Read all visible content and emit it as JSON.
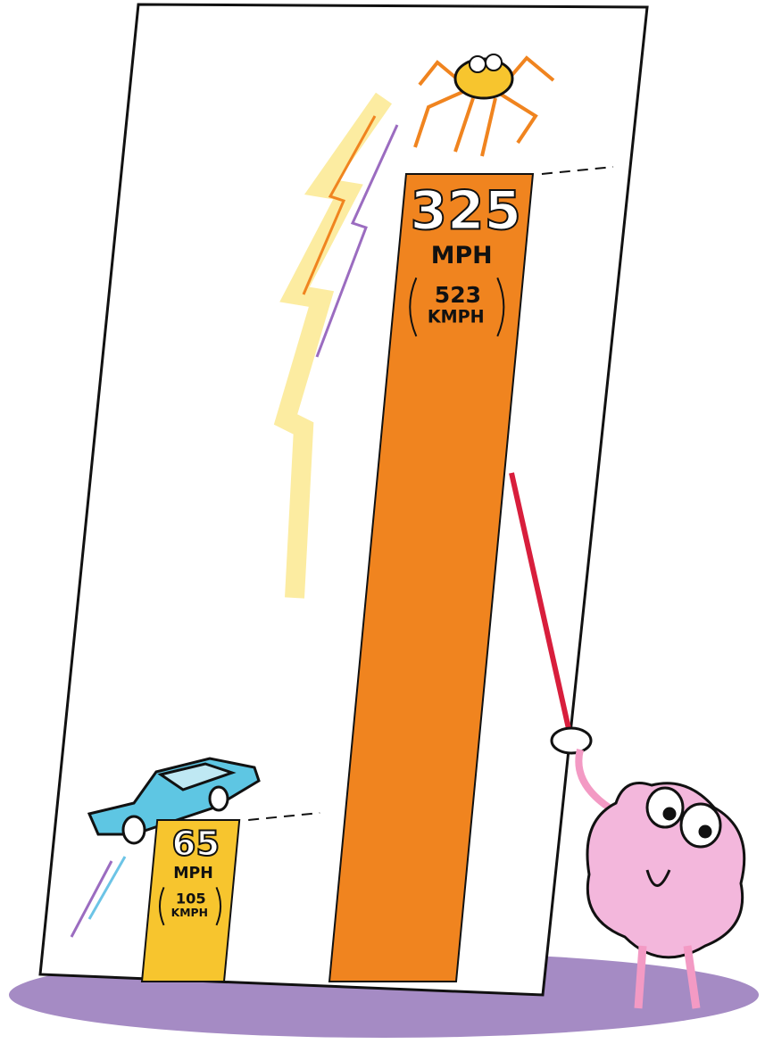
{
  "chart_data": {
    "type": "bar",
    "values": [
      65,
      325
    ],
    "unit": "MPH",
    "secondary_values": [
      105,
      523
    ],
    "secondary_unit": "KMPH",
    "colors": [
      "#f7c52e",
      "#f0841f"
    ]
  }
}
